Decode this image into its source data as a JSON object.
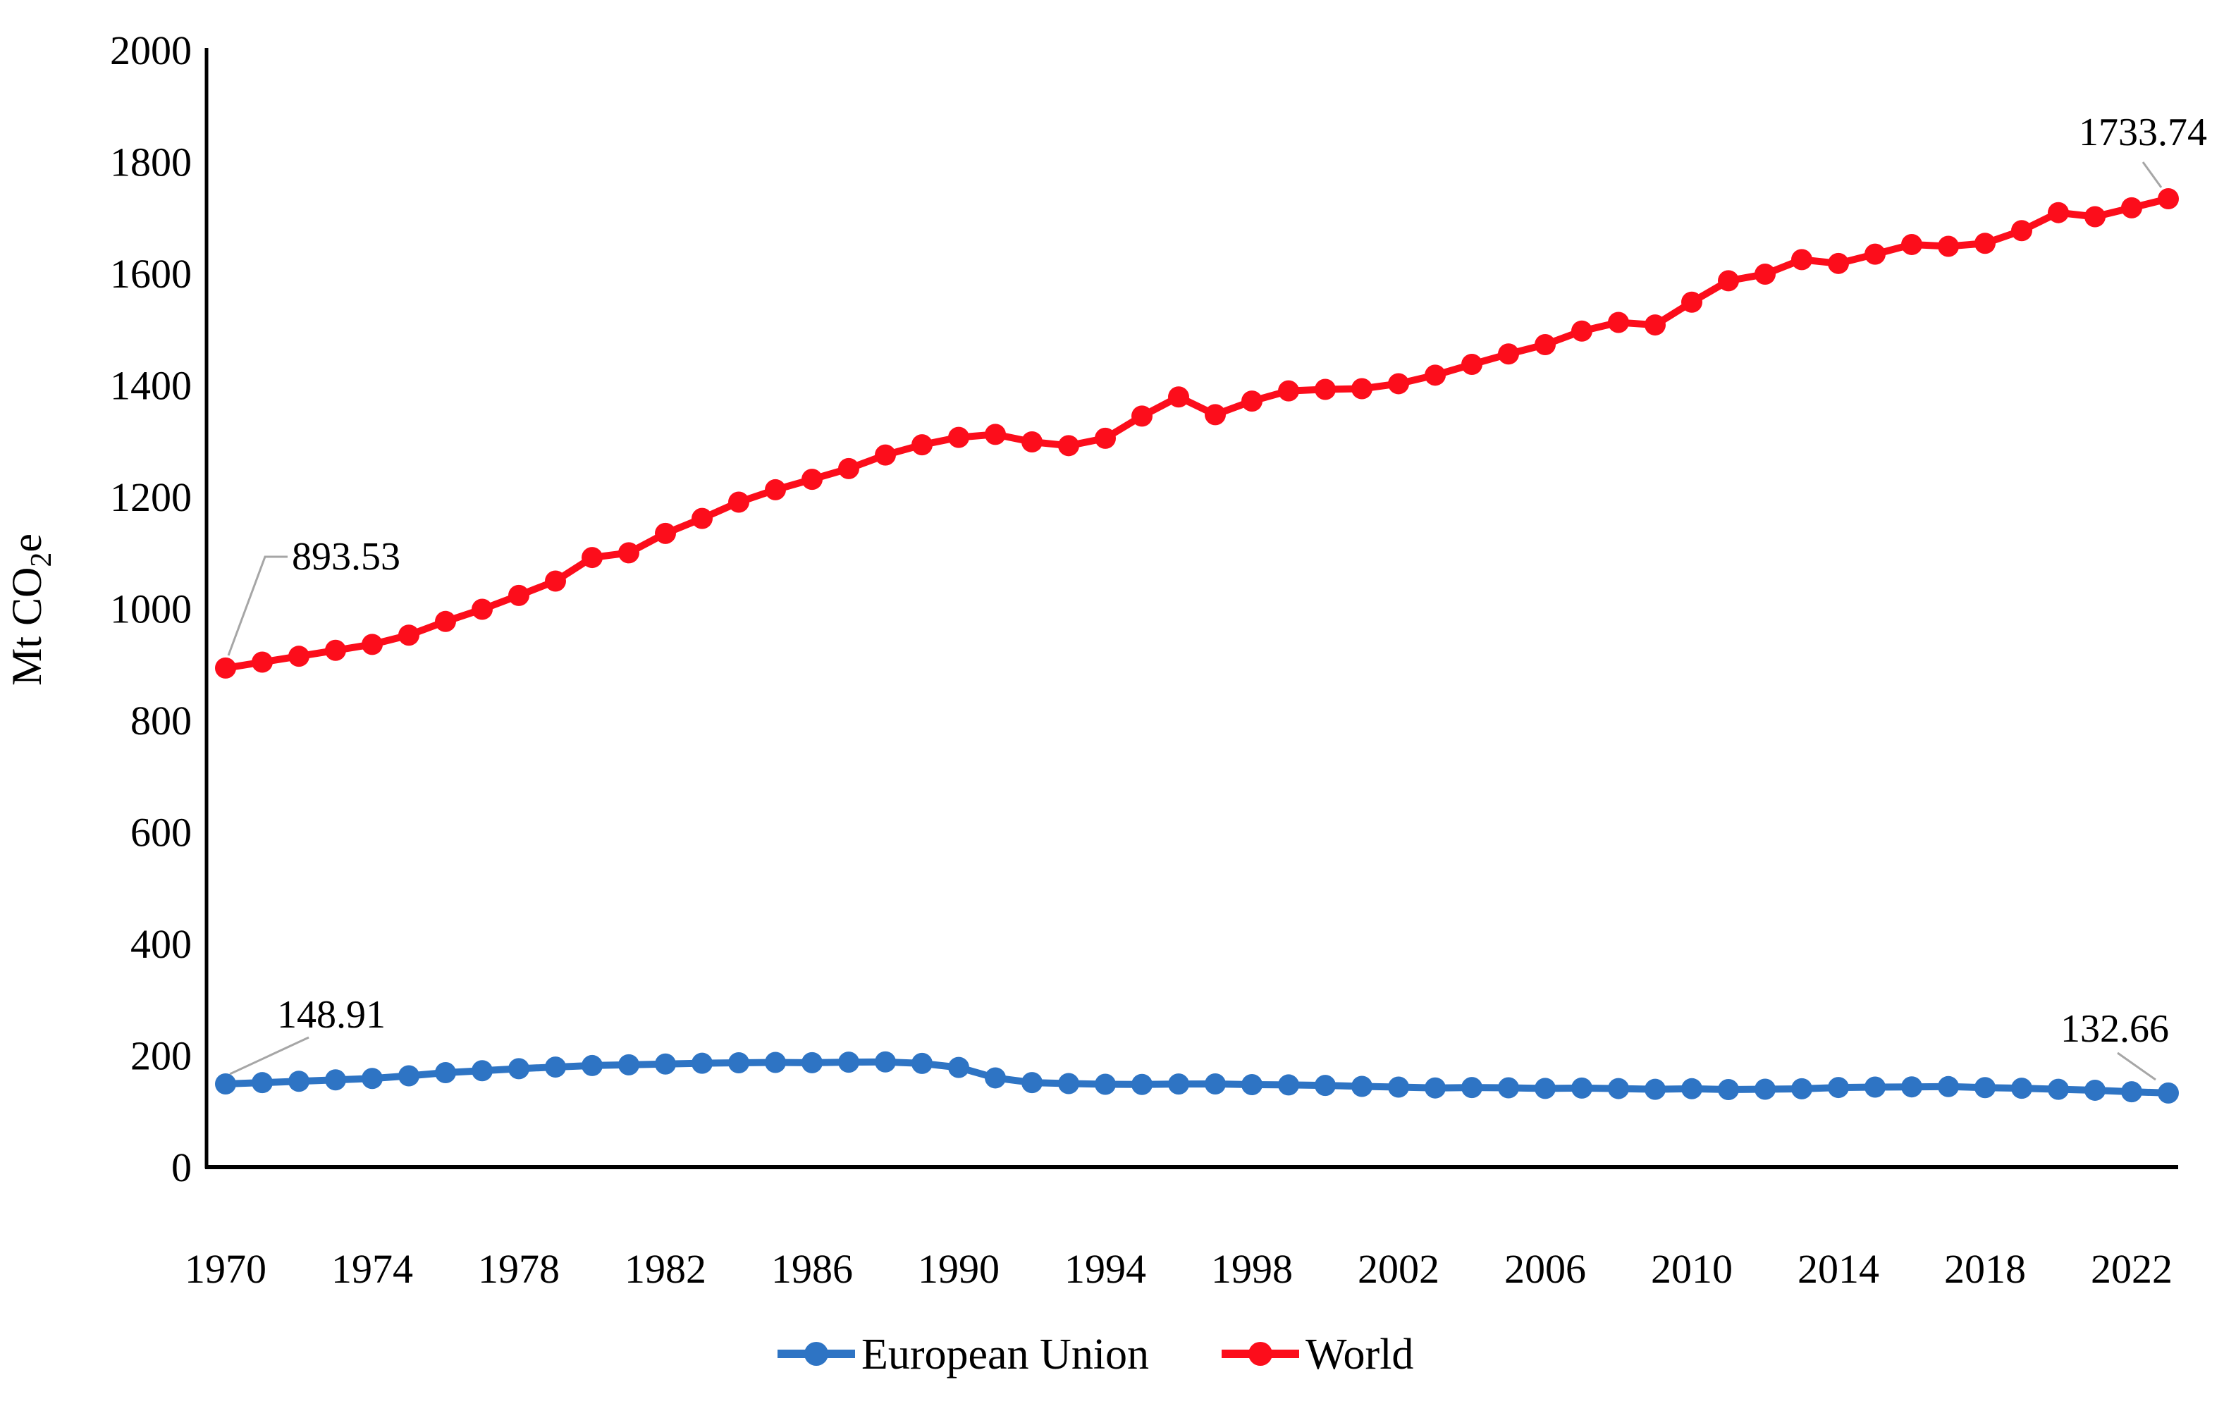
{
  "figure": {
    "background": "#ffffff",
    "text_color": "#000000",
    "axis_color": "#000000",
    "leader_line_color": "#a6a6a6"
  },
  "chart_data": {
    "type": "line",
    "title": "",
    "xlabel": "",
    "ylabel": "Mt CO2e",
    "ylabel_rich": {
      "prefix": "Mt CO",
      "sub": "2",
      "suffix": "e"
    },
    "ylim": [
      0,
      2000
    ],
    "ytick_step": 200,
    "grid": "off",
    "legend_position": "bottom-center",
    "yticks": [
      "0",
      "200",
      "400",
      "600",
      "800",
      "1000",
      "1200",
      "1400",
      "1600",
      "1800",
      "2000"
    ],
    "xticks": [
      "1970",
      "1974",
      "1978",
      "1982",
      "1986",
      "1990",
      "1994",
      "1998",
      "2002",
      "2006",
      "2010",
      "2014",
      "2018",
      "2022"
    ],
    "x": [
      1970,
      1971,
      1972,
      1973,
      1974,
      1975,
      1976,
      1977,
      1978,
      1979,
      1980,
      1981,
      1982,
      1983,
      1984,
      1985,
      1986,
      1987,
      1988,
      1989,
      1990,
      1991,
      1992,
      1993,
      1994,
      1995,
      1996,
      1997,
      1998,
      1999,
      2000,
      2001,
      2002,
      2003,
      2004,
      2005,
      2006,
      2007,
      2008,
      2009,
      2010,
      2011,
      2012,
      2013,
      2014,
      2015,
      2016,
      2017,
      2018,
      2019,
      2020,
      2021,
      2022,
      2023
    ],
    "series": [
      {
        "name": "European Union",
        "color": "#2E74C4",
        "values": [
          148.91,
          151.2,
          153.6,
          156.1,
          158.7,
          163.4,
          169.1,
          172.6,
          176.2,
          179.1,
          181.8,
          183.1,
          184.6,
          185.9,
          186.7,
          187.4,
          186.9,
          187.8,
          188.3,
          185.6,
          178.4,
          159.7,
          151.3,
          149.5,
          148.3,
          147.9,
          148.7,
          148.9,
          147.6,
          147.1,
          146.2,
          144.5,
          143.2,
          141.7,
          142.4,
          141.9,
          140.8,
          141.5,
          140.6,
          139.2,
          140.3,
          138.8,
          139.4,
          140.2,
          142.5,
          143.2,
          143.6,
          144.1,
          142.3,
          141.2,
          139.3,
          137.6,
          134.9,
          132.66
        ]
      },
      {
        "name": "World",
        "color": "#FC0D1B",
        "values": [
          893.53,
          904.1,
          914.6,
          925.2,
          935.8,
          952.4,
          976.9,
          998.7,
          1023.5,
          1049.2,
          1091.4,
          1099.8,
          1134.6,
          1161.3,
          1190.5,
          1212.7,
          1231.4,
          1250.6,
          1274.9,
          1293.2,
          1306.5,
          1311.8,
          1298.4,
          1291.7,
          1304.9,
          1344.6,
          1378.9,
          1347.2,
          1371.5,
          1389.8,
          1392.4,
          1393.7,
          1402.6,
          1417.9,
          1437.2,
          1455.8,
          1472.6,
          1496.9,
          1512.3,
          1507.8,
          1548.6,
          1586.9,
          1598.7,
          1624.8,
          1617.9,
          1634.5,
          1651.8,
          1648.6,
          1653.9,
          1676.7,
          1708.9,
          1701.6,
          1717.5,
          1733.74
        ]
      }
    ],
    "annotations": [
      {
        "label": "893.53",
        "series": "World",
        "year": 1970
      },
      {
        "label": "1733.74",
        "series": "World",
        "year": 2023
      },
      {
        "label": "148.91",
        "series": "European Union",
        "year": 1970
      },
      {
        "label": "132.66",
        "series": "European Union",
        "year": 2023
      }
    ],
    "legend": [
      {
        "label": "European Union",
        "color": "#2E74C4"
      },
      {
        "label": "World",
        "color": "#FC0D1B"
      }
    ]
  }
}
